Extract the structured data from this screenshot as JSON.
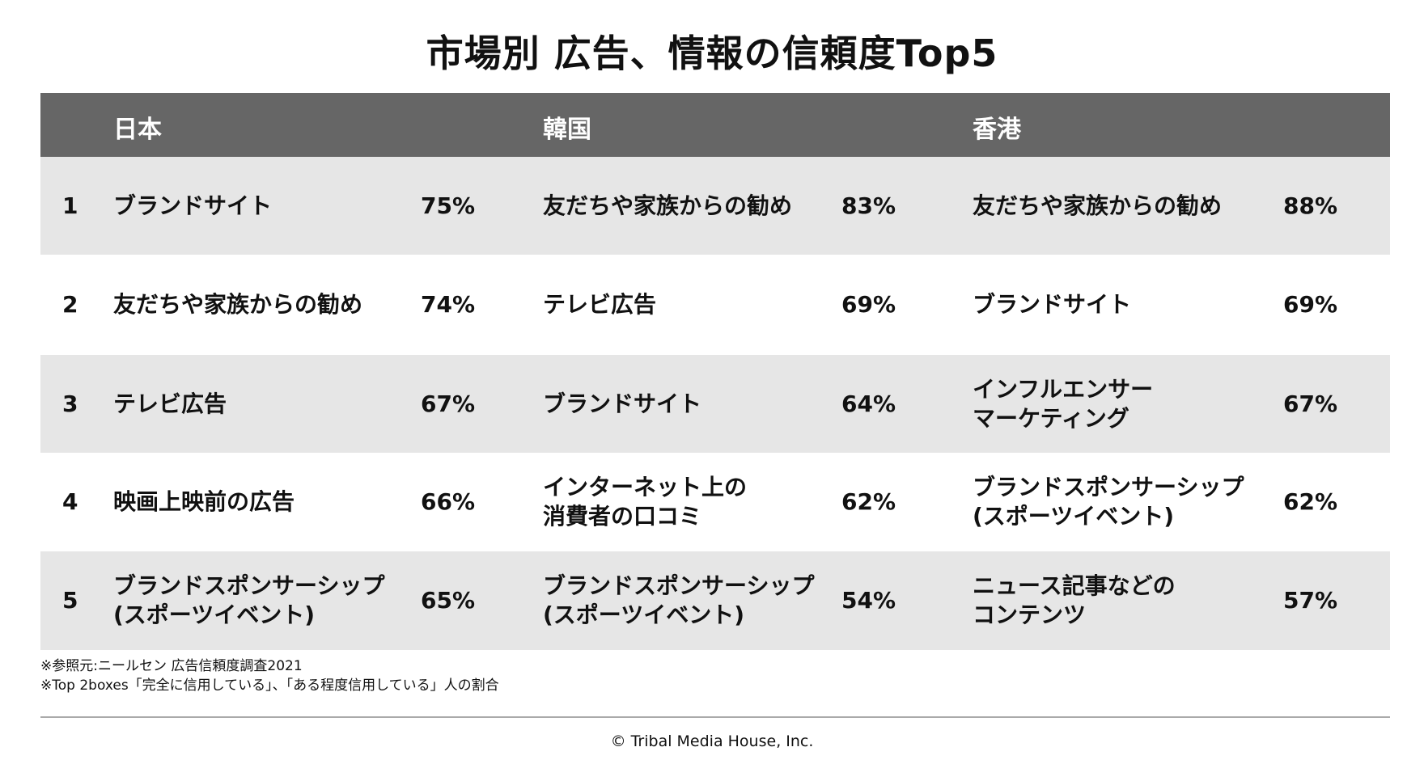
{
  "title": "市場別 広告、情報の信頼度Top5",
  "columns": [
    "日本",
    "韓国",
    "香港"
  ],
  "rows": [
    {
      "rank": "1",
      "japan": {
        "label": "ブランドサイト",
        "pct": "75%"
      },
      "korea": {
        "label": "友だちや家族からの勧め",
        "pct": "83%"
      },
      "hongkong": {
        "label": "友だちや家族からの勧め",
        "pct": "88%"
      }
    },
    {
      "rank": "2",
      "japan": {
        "label": "友だちや家族からの勧め",
        "pct": "74%"
      },
      "korea": {
        "label": "テレビ広告",
        "pct": "69%"
      },
      "hongkong": {
        "label": "ブランドサイト",
        "pct": "69%"
      }
    },
    {
      "rank": "3",
      "japan": {
        "label": "テレビ広告",
        "pct": "67%"
      },
      "korea": {
        "label": "ブランドサイト",
        "pct": "64%"
      },
      "hongkong": {
        "label": "インフルエンサー\nマーケティング",
        "pct": "67%"
      }
    },
    {
      "rank": "4",
      "japan": {
        "label": "映画上映前の広告",
        "pct": "66%"
      },
      "korea": {
        "label": "インターネット上の\n消費者の口コミ",
        "pct": "62%"
      },
      "hongkong": {
        "label": "ブランドスポンサーシップ\n(スポーツイベント)",
        "pct": "62%"
      }
    },
    {
      "rank": "5",
      "japan": {
        "label": "ブランドスポンサーシップ\n(スポーツイベント)",
        "pct": "65%"
      },
      "korea": {
        "label": "ブランドスポンサーシップ\n(スポーツイベント)",
        "pct": "54%"
      },
      "hongkong": {
        "label": "ニュース記事などの\nコンテンツ",
        "pct": "57%"
      }
    }
  ],
  "notes": [
    "※参照元:ニールセン 広告信頼度調査2021",
    "※Top 2boxes「完全に信用している」、「ある程度信用している」人の割合"
  ],
  "copyright": "© Tribal Media House, Inc.",
  "colors": {
    "header_bg": "#666666",
    "stripe_bg": "#e6e6e6"
  }
}
